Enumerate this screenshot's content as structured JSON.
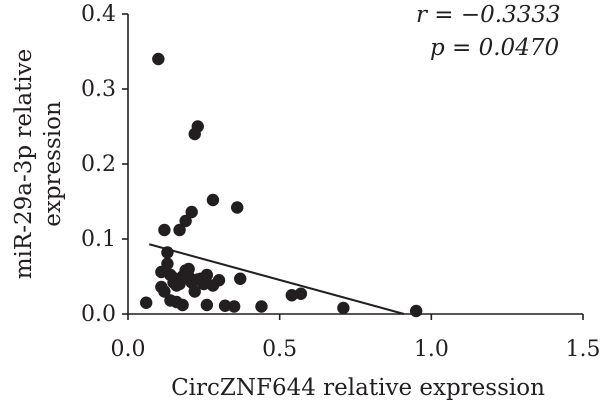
{
  "chart_data": {
    "type": "scatter",
    "xlabel": "CircZNF644 relative expression",
    "ylabel_lines": [
      "miR-29a-3p relative",
      "expression"
    ],
    "xlim": [
      0.0,
      1.5
    ],
    "ylim": [
      0.0,
      0.4
    ],
    "x_ticks": [
      "0.0",
      "0.5",
      "1.0",
      "1.5"
    ],
    "y_ticks": [
      "0.0",
      "0.1",
      "0.2",
      "0.3",
      "0.4"
    ],
    "annotations": {
      "r": "r = −0.3333",
      "p": "p = 0.0470"
    },
    "trendline": {
      "x": [
        0.07,
        0.91
      ],
      "y": [
        0.093,
        0.0
      ]
    },
    "series": [
      {
        "x": [
          0.06,
          0.1,
          0.11,
          0.12,
          0.13,
          0.14,
          0.15,
          0.16,
          0.17,
          0.18,
          0.19,
          0.2,
          0.21,
          0.22,
          0.23,
          0.24,
          0.26,
          0.28,
          0.3,
          0.32,
          0.36,
          0.37,
          0.44,
          0.54,
          0.57,
          0.71,
          0.95,
          0.11,
          0.12,
          0.13,
          0.14,
          0.15,
          0.16,
          0.17,
          0.18,
          0.19,
          0.2,
          0.21,
          0.22,
          0.23,
          0.25,
          0.26,
          0.28,
          0.35
        ],
        "y": [
          0.015,
          0.34,
          0.056,
          0.03,
          0.067,
          0.018,
          0.042,
          0.016,
          0.112,
          0.012,
          0.124,
          0.05,
          0.136,
          0.24,
          0.25,
          0.047,
          0.012,
          0.152,
          0.045,
          0.011,
          0.142,
          0.047,
          0.01,
          0.025,
          0.027,
          0.008,
          0.004,
          0.036,
          0.112,
          0.082,
          0.052,
          0.048,
          0.038,
          0.04,
          0.05,
          0.058,
          0.06,
          0.042,
          0.03,
          0.046,
          0.04,
          0.052,
          0.038,
          0.01
        ]
      }
    ]
  }
}
